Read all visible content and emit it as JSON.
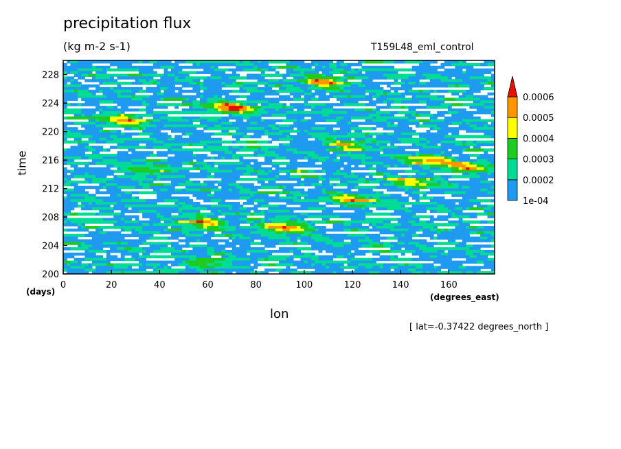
{
  "chart_data": {
    "type": "heatmap",
    "title": "precipitation flux",
    "subtitle": "(kg m-2 s-1)",
    "run_label": "T159L48_eml_control",
    "xlabel": "lon",
    "x_units": "(degrees_east)",
    "ylabel": "time",
    "y_units": "(days)",
    "annotation": "[ lat=-0.37422 degrees_north ]",
    "xlim": [
      0,
      179
    ],
    "ylim": [
      200,
      230
    ],
    "x_ticks": [
      0,
      20,
      40,
      60,
      80,
      100,
      120,
      140,
      160
    ],
    "y_ticks": [
      200,
      204,
      208,
      212,
      216,
      220,
      224,
      228
    ],
    "colorbar": {
      "levels": [
        "1e-04",
        "0.0002",
        "0.0003",
        "0.0004",
        "0.0005",
        "0.0006"
      ],
      "colors": [
        "#1e9bf0",
        "#00dc96",
        "#1ecb1e",
        "#ffff00",
        "#ff9600",
        "#e60f00"
      ],
      "below_color": "#ffffff",
      "extend": "max"
    },
    "features": [
      {
        "lon": 70,
        "time": 223.3,
        "value": 0.00065
      },
      {
        "lon": 92,
        "time": 206.5,
        "value": 0.00065
      },
      {
        "lon": 108,
        "time": 227.0,
        "value": 0.00062
      },
      {
        "lon": 58,
        "time": 207.2,
        "value": 0.00058
      },
      {
        "lon": 25,
        "time": 221.5,
        "value": 0.00052
      },
      {
        "lon": 118,
        "time": 218.0,
        "value": 0.00052
      },
      {
        "lon": 152,
        "time": 216.0,
        "value": 0.00055
      },
      {
        "lon": 168,
        "time": 215.0,
        "value": 0.0005
      },
      {
        "lon": 120,
        "time": 210.5,
        "value": 0.0005
      },
      {
        "lon": 145,
        "time": 213.0,
        "value": 0.00045
      },
      {
        "lon": 35,
        "time": 214.5,
        "value": 0.00042
      },
      {
        "lon": 60,
        "time": 201.5,
        "value": 0.00042
      }
    ]
  }
}
